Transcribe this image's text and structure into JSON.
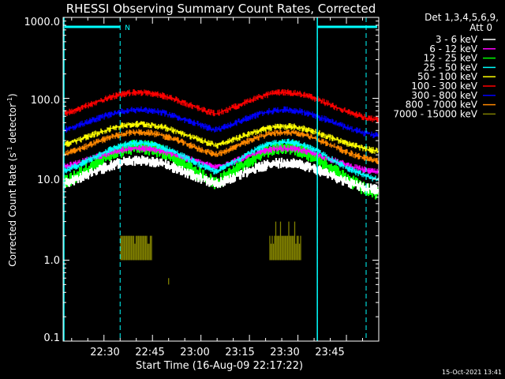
{
  "chart_data": {
    "type": "line",
    "title": "RHESSI Observing Summary Count Rates, Corrected",
    "xlabel": "Start Time (16-Aug-09 22:17:22)",
    "ylabel_main": "Corrected Count Rate (s",
    "ylabel_sup1": "-1",
    "ylabel_mid": " detector",
    "ylabel_sup2": "-1",
    "ylabel_end": ")",
    "yscale": "log",
    "ylim": [
      0.1,
      1000.0
    ],
    "xlim": [
      "22:17:22",
      "23:55"
    ],
    "x_ticks": [
      "22:30",
      "22:45",
      "23:00",
      "23:15",
      "23:30",
      "23:45"
    ],
    "y_ticks": [
      "1000.0",
      "100.0",
      "10.0",
      "1.0",
      "0.1"
    ],
    "legend": {
      "placement": "right",
      "header_line1": "Det 1,3,4,5,6,9,",
      "header_line2": "Att 0"
    },
    "series": [
      {
        "name": "3 - 6 keV",
        "color": "#ffffff",
        "base": 6.5,
        "peak1": 17,
        "peak2": 16
      },
      {
        "name": "6 - 12 keV",
        "color": "#ff00ff",
        "base": 11,
        "peak1": 24,
        "peak2": 24
      },
      {
        "name": "12 - 25 keV",
        "color": "#00ff00",
        "base": 5.5,
        "peak1": 25,
        "peak2": 25
      },
      {
        "name": "25 - 50 keV",
        "color": "#00ffff",
        "base": 8.5,
        "peak1": 28,
        "peak2": 29
      },
      {
        "name": "50 - 100 keV",
        "color": "#ffff00",
        "base": 20,
        "peak1": 48,
        "peak2": 45
      },
      {
        "name": "100 - 300 keV",
        "color": "#ff0000",
        "base": 48,
        "peak1": 118,
        "peak2": 118
      },
      {
        "name": "300 - 800 keV",
        "color": "#0000ff",
        "base": 31,
        "peak1": 72,
        "peak2": 72
      },
      {
        "name": "800 - 7000 keV",
        "color": "#ff8800",
        "base": 15,
        "peak1": 38,
        "peak2": 38
      },
      {
        "name": "7000 - 15000 keV",
        "color": "#808000",
        "base": 1.0,
        "peak1": 2.0,
        "peak2": 2.0
      }
    ],
    "peak_times": [
      "22:41",
      "23:26"
    ],
    "night_intervals": [
      [
        "22:17:22",
        "22:35"
      ],
      [
        "23:36",
        "23:55"
      ]
    ],
    "flag_label": "N"
  },
  "timestamp": "15-Oct-2021 13:41"
}
